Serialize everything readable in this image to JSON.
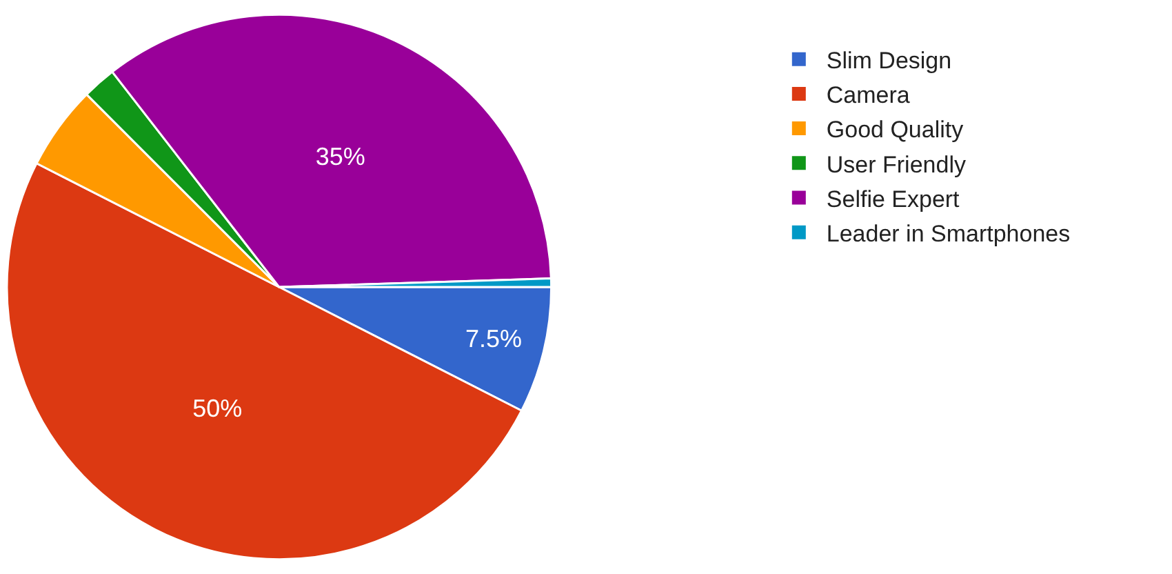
{
  "chart_data": {
    "type": "pie",
    "categories": [
      "Slim Design",
      "Camera",
      "Good Quality",
      "User Friendly",
      "Selfie Expert",
      "Leader in Smartphones"
    ],
    "values": [
      7.5,
      50,
      5,
      2,
      35,
      0.5
    ],
    "value_labels": [
      "7.5%",
      "50%",
      null,
      null,
      "35%",
      null
    ],
    "colors": [
      "#3366cc",
      "#dc3912",
      "#ff9900",
      "#109618",
      "#990099",
      "#0099c6"
    ],
    "legend": "right"
  }
}
